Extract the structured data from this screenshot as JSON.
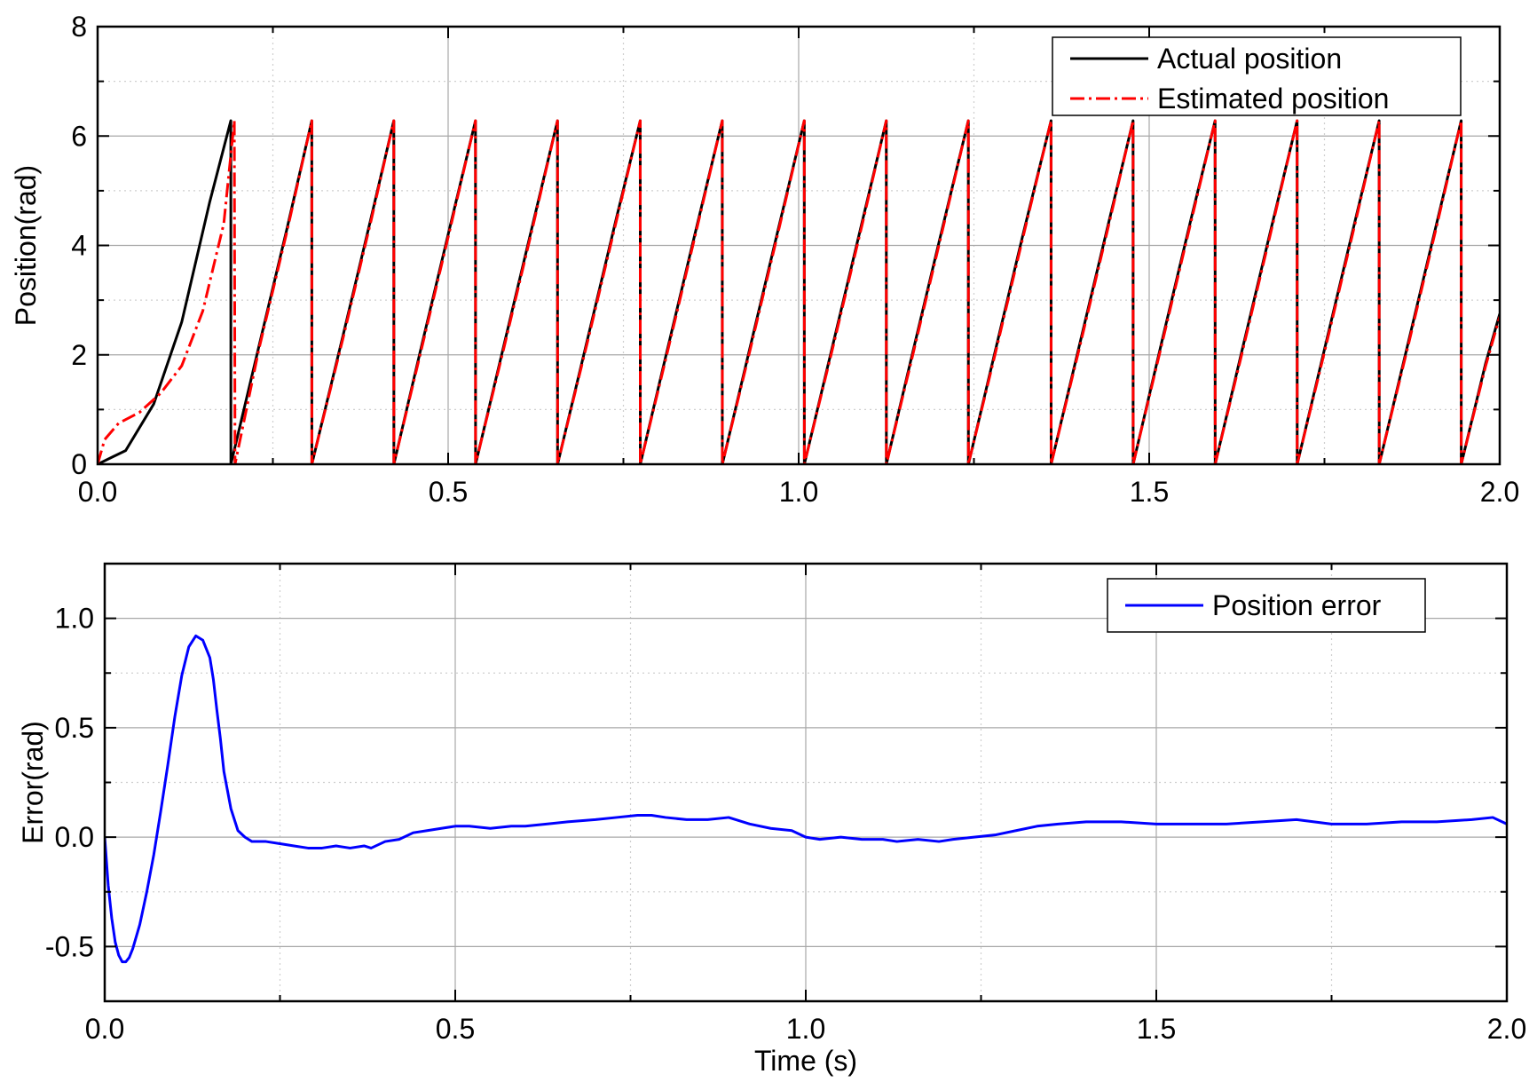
{
  "chart_data": [
    {
      "type": "line",
      "title": "",
      "xlabel": "",
      "ylabel": "Position(rad)",
      "xlim": [
        0,
        2
      ],
      "ylim": [
        0,
        8
      ],
      "xticks": [
        0,
        0.5,
        1,
        1.5,
        2
      ],
      "xtick_labels": [
        "0.0",
        "0.5",
        "1.0",
        "1.5",
        "2.0"
      ],
      "yticks": [
        0,
        2,
        4,
        6,
        8
      ],
      "ytick_labels": [
        "0",
        "2",
        "4",
        "6",
        "8"
      ],
      "grid": true,
      "legend_position": "top-right",
      "series": [
        {
          "name": "Actual position",
          "color": "#000000",
          "dash": "solid",
          "x": [
            0,
            0.04,
            0.08,
            0.12,
            0.16,
            0.19,
            0.1901,
            0.23,
            0.27,
            0.3055,
            0.3056,
            0.35,
            0.39,
            0.4225,
            0.4226,
            0.46,
            0.5,
            0.539,
            0.5391,
            0.58,
            0.62,
            0.656,
            0.6561,
            0.7,
            0.74,
            0.774,
            0.7741,
            0.81,
            0.85,
            0.891,
            0.8911,
            0.93,
            0.97,
            1.008,
            1.0081,
            1.05,
            1.09,
            1.125,
            1.1251,
            1.16,
            1.2,
            1.242,
            1.2421,
            1.28,
            1.32,
            1.36,
            1.3601,
            1.4,
            1.44,
            1.477,
            1.4771,
            1.52,
            1.56,
            1.594,
            1.5941,
            1.63,
            1.67,
            1.711,
            1.7111,
            1.75,
            1.79,
            1.828,
            1.8281,
            1.87,
            1.91,
            1.945,
            1.9451,
            1.98,
            2.0
          ],
          "y": [
            0,
            0.25,
            1.1,
            2.6,
            4.8,
            6.28,
            0,
            2.15,
            4.3,
            6.28,
            0,
            2.35,
            4.5,
            6.28,
            0,
            2.05,
            4.2,
            6.28,
            0,
            2.2,
            4.35,
            6.28,
            0,
            2.35,
            4.5,
            6.28,
            0,
            1.95,
            4.1,
            6.28,
            0,
            2.1,
            4.25,
            6.28,
            0,
            2.25,
            4.4,
            6.28,
            0,
            1.9,
            4.05,
            6.28,
            0,
            2.05,
            4.2,
            6.28,
            0,
            2.15,
            4.3,
            6.28,
            0,
            2.35,
            4.5,
            6.28,
            0,
            1.95,
            4.1,
            6.28,
            0,
            2.1,
            4.25,
            6.28,
            0,
            2.25,
            4.4,
            6.28,
            0,
            1.85,
            2.75
          ]
        },
        {
          "name": "Estimated position",
          "color": "#ff0000",
          "dash": "dashdot",
          "x": [
            0,
            0.01,
            0.03,
            0.06,
            0.09,
            0.12,
            0.15,
            0.18,
            0.195,
            0.196,
            0.23,
            0.27,
            0.3055,
            0.3056,
            0.35,
            0.39,
            0.4225,
            0.4226,
            0.46,
            0.5,
            0.539,
            0.5391,
            0.58,
            0.62,
            0.656,
            0.6561,
            0.7,
            0.74,
            0.774,
            0.7741,
            0.81,
            0.85,
            0.891,
            0.8911,
            0.93,
            0.97,
            1.008,
            1.0081,
            1.05,
            1.09,
            1.125,
            1.1251,
            1.16,
            1.2,
            1.242,
            1.2421,
            1.28,
            1.32,
            1.36,
            1.3601,
            1.4,
            1.44,
            1.477,
            1.4771,
            1.52,
            1.56,
            1.594,
            1.5941,
            1.63,
            1.67,
            1.711,
            1.7111,
            1.75,
            1.79,
            1.828,
            1.8281,
            1.87,
            1.91,
            1.945,
            1.9451,
            1.98,
            2.0
          ],
          "y": [
            0,
            0.45,
            0.75,
            0.95,
            1.3,
            1.8,
            2.8,
            4.4,
            6.28,
            0,
            2.1,
            4.25,
            6.28,
            0,
            2.3,
            4.45,
            6.28,
            0,
            2.0,
            4.15,
            6.28,
            0,
            2.15,
            4.3,
            6.28,
            0,
            2.3,
            4.45,
            6.28,
            0,
            1.9,
            4.05,
            6.28,
            0,
            2.05,
            4.2,
            6.28,
            0,
            2.2,
            4.35,
            6.28,
            0,
            1.85,
            4.0,
            6.28,
            0,
            2.0,
            4.15,
            6.28,
            0,
            2.1,
            4.25,
            6.28,
            0,
            2.3,
            4.45,
            6.28,
            0,
            1.9,
            4.05,
            6.28,
            0,
            2.05,
            4.2,
            6.28,
            0,
            2.2,
            4.35,
            6.28,
            0,
            1.8,
            2.7
          ]
        }
      ]
    },
    {
      "type": "line",
      "title": "",
      "xlabel": "Time (s)",
      "ylabel": "Error(rad)",
      "xlim": [
        0,
        2
      ],
      "ylim": [
        -0.75,
        1.25
      ],
      "xticks": [
        0,
        0.5,
        1,
        1.5,
        2
      ],
      "xtick_labels": [
        "0.0",
        "0.5",
        "1.0",
        "1.5",
        "2.0"
      ],
      "yticks": [
        -0.5,
        0,
        0.5,
        1
      ],
      "ytick_labels": [
        "-0.5",
        "0.0",
        "0.5",
        "1.0"
      ],
      "grid": true,
      "legend_position": "top-right",
      "series": [
        {
          "name": "Position error",
          "color": "#0000ff",
          "dash": "solid",
          "x": [
            0,
            0.005,
            0.01,
            0.015,
            0.02,
            0.025,
            0.03,
            0.035,
            0.04,
            0.05,
            0.06,
            0.07,
            0.08,
            0.09,
            0.1,
            0.11,
            0.12,
            0.13,
            0.14,
            0.15,
            0.155,
            0.16,
            0.165,
            0.17,
            0.18,
            0.19,
            0.2,
            0.21,
            0.22,
            0.23,
            0.25,
            0.27,
            0.29,
            0.31,
            0.33,
            0.35,
            0.37,
            0.38,
            0.4,
            0.42,
            0.44,
            0.46,
            0.48,
            0.5,
            0.52,
            0.55,
            0.58,
            0.6,
            0.63,
            0.66,
            0.7,
            0.73,
            0.76,
            0.78,
            0.8,
            0.83,
            0.86,
            0.89,
            0.92,
            0.95,
            0.98,
            1.0,
            1.02,
            1.05,
            1.08,
            1.11,
            1.13,
            1.16,
            1.19,
            1.21,
            1.24,
            1.27,
            1.3,
            1.33,
            1.36,
            1.4,
            1.45,
            1.5,
            1.55,
            1.6,
            1.65,
            1.7,
            1.75,
            1.8,
            1.85,
            1.9,
            1.95,
            1.98,
            2.0
          ],
          "y": [
            0,
            -0.22,
            -0.37,
            -0.48,
            -0.54,
            -0.57,
            -0.57,
            -0.55,
            -0.51,
            -0.4,
            -0.25,
            -0.08,
            0.12,
            0.33,
            0.55,
            0.74,
            0.87,
            0.92,
            0.9,
            0.82,
            0.72,
            0.58,
            0.45,
            0.3,
            0.13,
            0.03,
            0.0,
            -0.02,
            -0.02,
            -0.02,
            -0.03,
            -0.04,
            -0.05,
            -0.05,
            -0.04,
            -0.05,
            -0.04,
            -0.05,
            -0.02,
            -0.01,
            0.02,
            0.03,
            0.04,
            0.05,
            0.05,
            0.04,
            0.05,
            0.05,
            0.06,
            0.07,
            0.08,
            0.09,
            0.1,
            0.1,
            0.09,
            0.08,
            0.08,
            0.09,
            0.06,
            0.04,
            0.03,
            0.0,
            -0.01,
            0.0,
            -0.01,
            -0.01,
            -0.02,
            -0.01,
            -0.02,
            -0.01,
            0.0,
            0.01,
            0.03,
            0.05,
            0.06,
            0.07,
            0.07,
            0.06,
            0.06,
            0.06,
            0.07,
            0.08,
            0.06,
            0.06,
            0.07,
            0.07,
            0.08,
            0.09,
            0.06
          ]
        }
      ]
    }
  ]
}
